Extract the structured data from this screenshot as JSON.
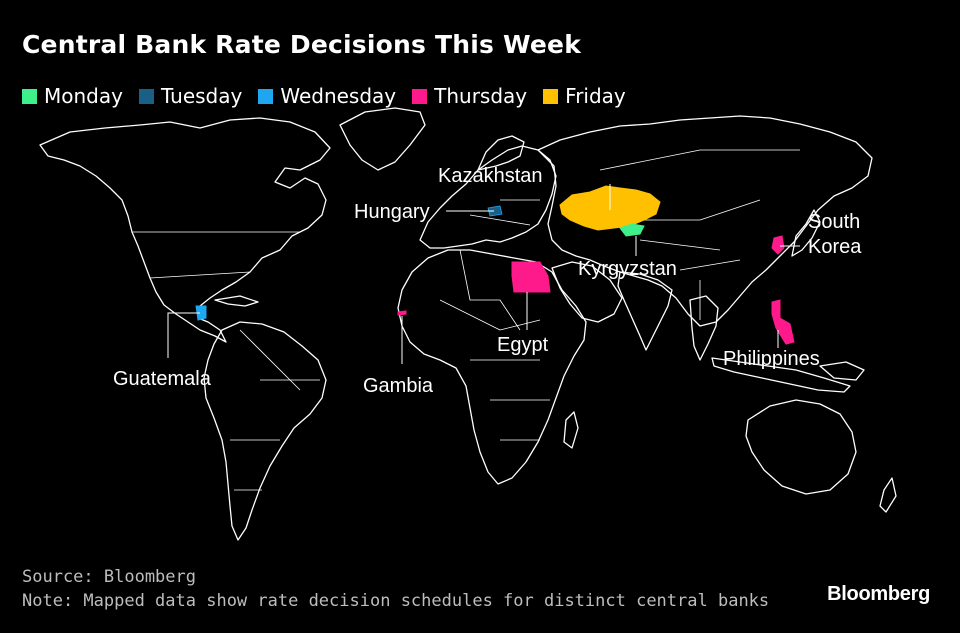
{
  "title": "Central Bank Rate Decisions This Week",
  "legend": [
    {
      "label": "Monday",
      "color": "#3ef08c"
    },
    {
      "label": "Tuesday",
      "color": "#1a5f85"
    },
    {
      "label": "Wednesday",
      "color": "#1ea7f0"
    },
    {
      "label": "Thursday",
      "color": "#ff1a8c"
    },
    {
      "label": "Friday",
      "color": "#ffc000"
    }
  ],
  "countries": {
    "kazakhstan": {
      "label": "Kazakhstan",
      "day": "Friday"
    },
    "hungary": {
      "label": "Hungary",
      "day": "Tuesday"
    },
    "kyrgyzstan": {
      "label": "Kyrgyzstan",
      "day": "Monday"
    },
    "egypt": {
      "label": "Egypt",
      "day": "Thursday"
    },
    "south_korea": {
      "label_line1": "South",
      "label_line2": "Korea",
      "day": "Thursday"
    },
    "philippines": {
      "label": "Philippines",
      "day": "Thursday"
    },
    "guatemala": {
      "label": "Guatemala",
      "day": "Wednesday"
    },
    "gambia": {
      "label": "Gambia",
      "day": "Thursday"
    }
  },
  "footer": {
    "source": "Source: Bloomberg",
    "note": "Note: Mapped data show rate decision schedules for distinct central banks",
    "brand": "Bloomberg"
  }
}
